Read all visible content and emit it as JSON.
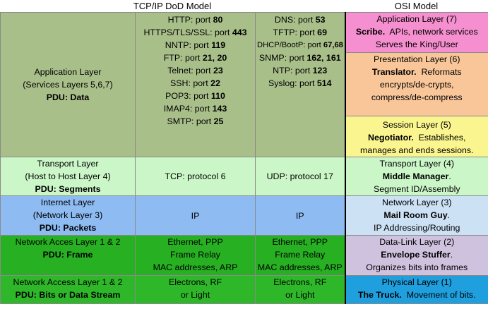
{
  "headers": {
    "tcpip": "TCP/IP DoD Model",
    "osi": "OSI Model"
  },
  "application": {
    "left": {
      "line1": "Application Layer",
      "line2": "(Services Layers 5,6,7)",
      "pdu": "PDU: Data"
    },
    "col2": [
      {
        "pre": "HTTP: port ",
        "num": "80"
      },
      {
        "pre": "HTTPS/TLS/SSL: port ",
        "num": "443"
      },
      {
        "pre": "NNTP: port ",
        "num": "119"
      },
      {
        "pre": "FTP: port ",
        "num": "21, 20"
      },
      {
        "pre": "Telnet: port ",
        "num": "23"
      },
      {
        "pre": "SSH: port ",
        "num": "22"
      },
      {
        "pre": "POP3: port ",
        "num": "110"
      },
      {
        "pre": "IMAP4: port ",
        "num": "143"
      },
      {
        "pre": "SMTP: port ",
        "num": "25"
      }
    ],
    "col3": [
      {
        "pre": "DNS: port ",
        "num": "53"
      },
      {
        "pre": "TFTP: port ",
        "num": "69"
      },
      {
        "pre": "DHCP/BootP: port ",
        "num": "67,68"
      },
      {
        "pre": "SNMP: port ",
        "num": "162, 161"
      },
      {
        "pre": "NTP: port ",
        "num": "123"
      },
      {
        "pre": "Syslog: port ",
        "num": "514"
      }
    ],
    "osi_app": {
      "title": "Application Layer (7)",
      "role": "Scribe.",
      "desc1": "  APIs, network services",
      "desc2": "Serves the King/User"
    },
    "osi_pres": {
      "title": "Presentation Layer (6)",
      "role": "Translator.",
      "desc1": "  Reformats",
      "desc2": "encrypts/de-crypts,",
      "desc3": "compress/de-compress"
    },
    "osi_sess": {
      "title": "Session Layer (5)",
      "role": "Negotiator.",
      "desc1": "  Establishes,",
      "desc2": "manages and ends sessions."
    }
  },
  "transport": {
    "left": {
      "line1": "Transport Layer",
      "line2": "(Host to Host Layer 4)",
      "pdu": "PDU: Segments"
    },
    "col2": "TCP: protocol 6",
    "col3": "UDP: protocol 17",
    "osi": {
      "title": "Transport Layer (4)",
      "role": "Middle Manager",
      "dot": ".",
      "desc": "Segment ID/Assembly"
    }
  },
  "internet": {
    "left": {
      "line1": "Internet Layer",
      "line2": "(Network Layer 3)",
      "pdu": "PDU: Packets"
    },
    "col2": "IP",
    "col3": "IP",
    "osi": {
      "title": "Network Layer (3)",
      "role": "Mail Room Guy",
      "dot": ".",
      "desc": "IP Addressing/Routing"
    }
  },
  "netaccess": {
    "left": {
      "line1": "Network Acces Layer 1 & 2",
      "pdu": "PDU: Frame"
    },
    "col2": [
      "Ethernet, PPP",
      "Frame Relay",
      "MAC addresses, ARP"
    ],
    "col3": [
      "Ethernet, PPP",
      "Frame Relay",
      "MAC addresses, ARP"
    ],
    "osi": {
      "title": "Data-Link Layer (2)",
      "role": "Envelope Stuffer",
      "dot": ".",
      "desc": "Organizes bits into frames"
    }
  },
  "physical": {
    "left": {
      "line1": "Network Access Layer 1 & 2",
      "pdu": "PDU: Bits or Data Stream"
    },
    "col2": [
      "Electrons, RF",
      "or Light"
    ],
    "col3": [
      "Electrons, RF",
      "or Light"
    ],
    "osi": {
      "title": "Physical Layer (1)",
      "role": "The Truck.",
      "desc": "  Movement of bits."
    }
  }
}
